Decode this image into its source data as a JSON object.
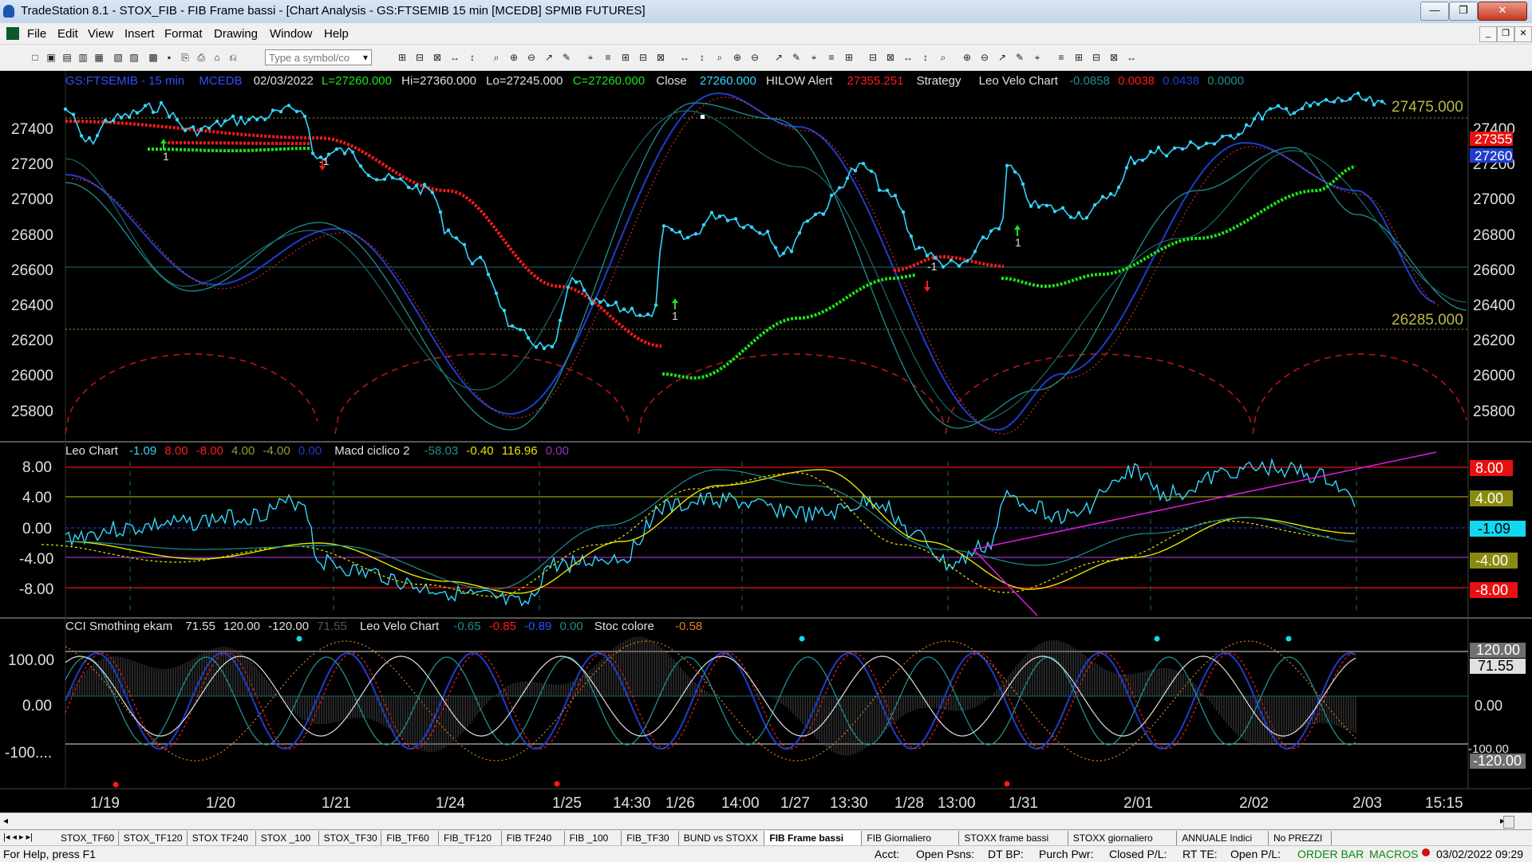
{
  "window": {
    "title": "TradeStation 8.1 - STOX_FIB - FIB Frame bassi - [Chart Analysis - GS:FTSEMIB  15 min  [MCEDB] SPMIB FUTURES]",
    "min_glyph": "—",
    "max_glyph": "❐",
    "close_glyph": "✕"
  },
  "menu": {
    "items": [
      "File",
      "Edit",
      "View",
      "Insert",
      "Format",
      "Drawing",
      "Window",
      "Help"
    ]
  },
  "toolbar": {
    "symbol_placeholder": "Type a symbol/co"
  },
  "colors": {
    "price": "#33d6ff",
    "red": "#ff1a1a",
    "green": "#19e619",
    "blue": "#1f3dcc",
    "teal": "#1f8f8f",
    "yellow": "#e6e600",
    "magenta": "#e61ae6",
    "olive": "#b8b84a",
    "gray": "#9a9a9a"
  },
  "price_pane": {
    "header": {
      "symbol": "GS:FTSEMIB - 15 min",
      "source": "MCEDB",
      "date": "02/03/2022",
      "last": "L=27260.000",
      "hi": "Hi=27360.000",
      "lo": "Lo=27245.000",
      "close_val": "C=27260.000",
      "close_label": "Close",
      "close_num": "27260.000",
      "hilow_label": "HILOW Alert",
      "hilow_val": "27355.251",
      "strategy_label": "Strategy",
      "velo_label": "Leo Velo Chart",
      "velo_1": "-0.0858",
      "velo_2": "0.0038",
      "velo_3": "0.0438",
      "velo_4": "0.0000"
    },
    "level_upper": "27475.000",
    "level_lower": "26285.000",
    "badge_red": "27355",
    "badge_blue": "27260",
    "y_ticks": [
      "27400",
      "27200",
      "27000",
      "26800",
      "26600",
      "26400",
      "26200",
      "26000",
      "25800"
    ],
    "signals": [
      "1",
      "-1",
      "1",
      "-1",
      "1"
    ]
  },
  "osc_pane": {
    "leo_label": "Leo Chart",
    "leo_1": "-1.09",
    "leo_2": "8.00",
    "leo_3": "-8.00",
    "leo_4": "4.00",
    "leo_5": "-4.00",
    "leo_6": "0.00",
    "macd_label": "Macd ciclico 2",
    "macd_1": "-58.03",
    "macd_2": "-0.40",
    "macd_3": "116.96",
    "macd_4": "0.00",
    "y_ticks": [
      "8.00",
      "4.00",
      "0.00",
      "-4.00",
      "-8.00"
    ],
    "badges": [
      "8.00",
      "4.00",
      "-1.09",
      "-4.00",
      "-8.00"
    ]
  },
  "cci_pane": {
    "cci_label": "CCI Smothing ekam",
    "cci_1": "71.55",
    "cci_2": "120.00",
    "cci_3": "-120.00",
    "cci_4": "71.55",
    "velo_label": "Leo Velo Chart",
    "velo_1": "-0.65",
    "velo_2": "-0.85",
    "velo_3": "-0.89",
    "velo_4": "0.00",
    "stoc_label": "Stoc colore",
    "stoc_1": "-0.58",
    "y_ticks": [
      "100.00",
      "0.00",
      "-100...."
    ],
    "badges": [
      "120.00",
      "71.55",
      "0.00",
      "-100.00",
      "-120.00"
    ]
  },
  "x_axis": {
    "labels": [
      "1/19",
      "1/20",
      "1/21",
      "1/24",
      "1/25",
      "14:30",
      "1/26",
      "14:00",
      "1/27",
      "13:30",
      "1/28",
      "13:00",
      "1/31",
      "2/01",
      "2/02",
      "2/03",
      "15:15"
    ]
  },
  "tabs": {
    "items": [
      "STOX_TF60",
      "STOX_TF120",
      "STOX TF240",
      "STOX _100",
      "STOX_TF30",
      "FIB_TF60",
      "FIB_TF120",
      "FIB TF240",
      "FIB _100",
      "FIB_TF30",
      "BUND vs STOXX",
      "FIB Frame bassi",
      "FIB Giornaliero",
      "STOXX frame bassi",
      "STOXX giornaliero",
      "ANNUALE Indici",
      "No PREZZI"
    ],
    "active": "FIB Frame bassi"
  },
  "status": {
    "help": "For Help, press F1",
    "acct": "Acct:",
    "open_psns": "Open Psns:",
    "dt_bp": "DT BP:",
    "purch_pwr": "Purch Pwr:",
    "closed_pl": "Closed P/L:",
    "rt_te": "RT TE:",
    "open_pl": "Open P/L:",
    "order_bar": "ORDER BAR",
    "macros": "MACROS",
    "datetime": "03/02/2022 09:29"
  }
}
